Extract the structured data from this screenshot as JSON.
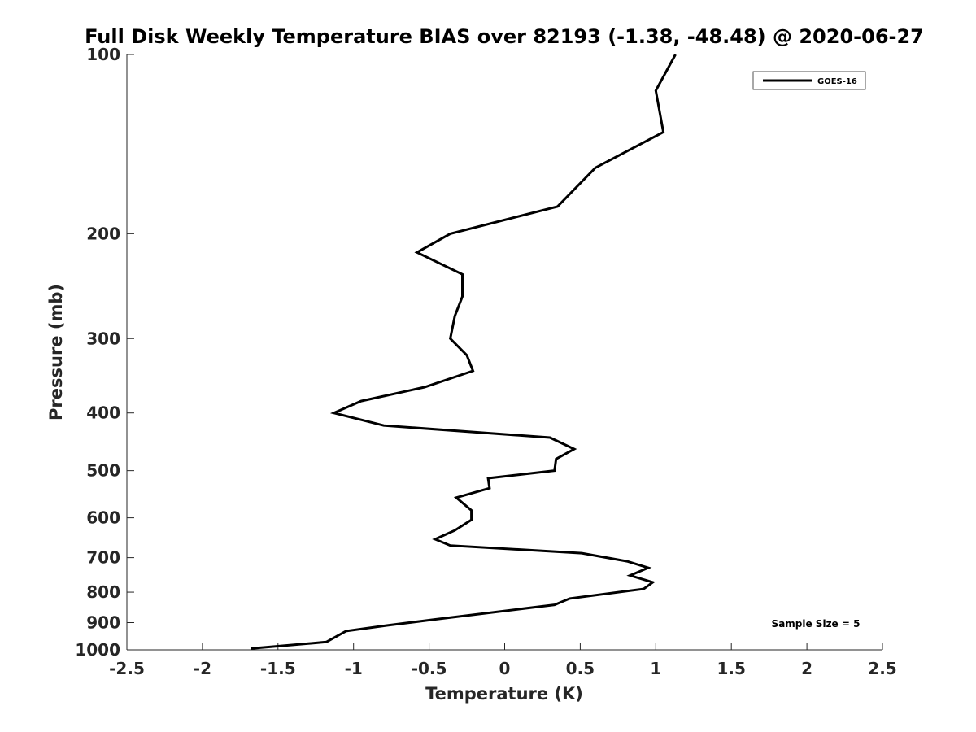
{
  "chart_data": {
    "type": "line",
    "title": "Full Disk Weekly Temperature BIAS over 82193 (-1.38, -48.48) @ 2020-06-27",
    "xlabel": "Temperature (K)",
    "ylabel": "Pressure (mb)",
    "xlim": [
      -2.5,
      2.5
    ],
    "ylim": [
      100,
      1000
    ],
    "y_scale": "log",
    "y_reversed": true,
    "x_ticks": [
      "-2.5",
      "-2",
      "-1.5",
      "-1",
      "-0.5",
      "0",
      "0.5",
      "1",
      "1.5",
      "2",
      "2.5"
    ],
    "x_tick_values": [
      -2.5,
      -2,
      -1.5,
      -1,
      -0.5,
      0,
      0.5,
      1,
      1.5,
      2,
      2.5
    ],
    "y_ticks": [
      "100",
      "200",
      "300",
      "400",
      "500",
      "600",
      "700",
      "800",
      "900",
      "1000"
    ],
    "y_tick_values": [
      100,
      200,
      300,
      400,
      500,
      600,
      700,
      800,
      900,
      1000
    ],
    "grid": false,
    "legend_position": "top-right",
    "series": [
      {
        "name": "GOES-16",
        "color": "#000000",
        "points": [
          [
            1.13,
            100
          ],
          [
            1.0,
            115
          ],
          [
            1.05,
            135
          ],
          [
            0.6,
            155
          ],
          [
            0.35,
            180
          ],
          [
            -0.36,
            200
          ],
          [
            -0.58,
            215
          ],
          [
            -0.28,
            234
          ],
          [
            -0.28,
            255
          ],
          [
            -0.33,
            275
          ],
          [
            -0.36,
            300
          ],
          [
            -0.25,
            320
          ],
          [
            -0.21,
            340
          ],
          [
            -0.53,
            362
          ],
          [
            -0.95,
            382
          ],
          [
            -1.13,
            400
          ],
          [
            -0.8,
            420
          ],
          [
            0.3,
            440
          ],
          [
            0.46,
            460
          ],
          [
            0.34,
            478
          ],
          [
            0.33,
            500
          ],
          [
            -0.11,
            515
          ],
          [
            -0.1,
            535
          ],
          [
            -0.32,
            555
          ],
          [
            -0.22,
            583
          ],
          [
            -0.22,
            605
          ],
          [
            -0.33,
            630
          ],
          [
            -0.46,
            652
          ],
          [
            -0.36,
            668
          ],
          [
            0.51,
            688
          ],
          [
            0.81,
            710
          ],
          [
            0.95,
            728
          ],
          [
            0.83,
            750
          ],
          [
            0.98,
            770
          ],
          [
            0.92,
            790
          ],
          [
            0.43,
            820
          ],
          [
            0.33,
            840
          ],
          [
            -0.48,
            890
          ],
          [
            -0.78,
            910
          ],
          [
            -1.05,
            930
          ],
          [
            -1.18,
            970
          ],
          [
            -1.68,
            995
          ]
        ]
      }
    ],
    "annotation": "Sample Size = 5"
  }
}
